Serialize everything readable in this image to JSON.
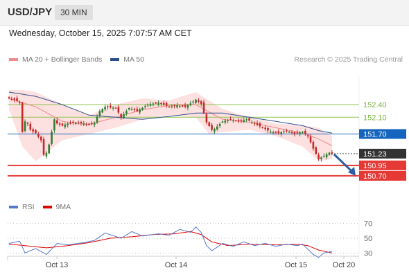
{
  "header": {
    "symbol": "USD/JPY",
    "timeframe": "30 MIN",
    "datetime": "Wednesday, October 15, 2025 7:07:57 AM CET"
  },
  "legend": {
    "main": [
      {
        "label": "MA 20 + Bollinger Bands",
        "color": "#f08a8a"
      },
      {
        "label": "MA 50",
        "color": "#2b4f8e"
      }
    ],
    "rsi": [
      {
        "label": "RSI",
        "color": "#5577cc"
      },
      {
        "label": "9MA",
        "color": "#dd0000"
      }
    ],
    "source": "Research © 2025 Trading Central"
  },
  "colors": {
    "up": "#2e7d32",
    "down": "#c62828",
    "bb_fill": "#fde0e0",
    "ma20": "#f08a8a",
    "ma50": "#2b4f8e",
    "resistance": "#8bc34a",
    "pivot": "#1565c0",
    "support": "#e53935",
    "current": "#333333",
    "arrow": "#2b5ea7"
  },
  "chart_data": [
    {
      "type": "candlestick",
      "pair": "USD/JPY",
      "timeframe": "30 MIN",
      "ylim": [
        150.55,
        152.75
      ],
      "x_ticks": [
        "Oct 13",
        "Oct 14",
        "Oct 15",
        "Oct 20"
      ],
      "levels": [
        {
          "label": "152.40",
          "value": 152.4,
          "kind": "resistance"
        },
        {
          "label": "152.10",
          "value": 152.1,
          "kind": "resistance"
        },
        {
          "label": "151.70",
          "value": 151.7,
          "kind": "pivot"
        },
        {
          "label": "151.23",
          "value": 151.23,
          "kind": "current"
        },
        {
          "label": "150.95",
          "value": 150.95,
          "kind": "support"
        },
        {
          "label": "150.70",
          "value": 150.7,
          "kind": "support"
        }
      ],
      "close_anchors": [
        [
          0,
          152.55
        ],
        [
          2,
          152.52
        ],
        [
          4,
          152.45
        ],
        [
          5,
          151.75
        ],
        [
          6,
          152.0
        ],
        [
          7,
          151.95
        ],
        [
          8,
          151.8
        ],
        [
          10,
          151.72
        ],
        [
          12,
          151.55
        ],
        [
          13,
          151.2
        ],
        [
          14,
          151.25
        ],
        [
          15,
          151.45
        ],
        [
          17,
          152.05
        ],
        [
          18,
          151.95
        ],
        [
          20,
          151.9
        ],
        [
          22,
          151.95
        ],
        [
          25,
          151.97
        ],
        [
          28,
          151.95
        ],
        [
          30,
          151.92
        ],
        [
          32,
          151.97
        ],
        [
          34,
          152.25
        ],
        [
          36,
          152.35
        ],
        [
          40,
          152.32
        ],
        [
          42,
          152.1
        ],
        [
          45,
          152.32
        ],
        [
          48,
          152.25
        ],
        [
          52,
          152.4
        ],
        [
          56,
          152.45
        ],
        [
          60,
          152.35
        ],
        [
          63,
          152.38
        ],
        [
          66,
          152.35
        ],
        [
          68,
          152.43
        ],
        [
          70,
          152.52
        ],
        [
          72,
          152.42
        ],
        [
          73,
          152.2
        ],
        [
          74,
          151.98
        ],
        [
          76,
          151.8
        ],
        [
          77,
          151.82
        ],
        [
          80,
          152.0
        ],
        [
          83,
          152.05
        ],
        [
          86,
          152.0
        ],
        [
          89,
          152.05
        ],
        [
          92,
          151.95
        ],
        [
          95,
          151.85
        ],
        [
          98,
          151.75
        ],
        [
          101,
          151.72
        ],
        [
          104,
          151.78
        ],
        [
          107,
          151.7
        ],
        [
          110,
          151.75
        ],
        [
          112,
          151.65
        ],
        [
          114,
          151.35
        ],
        [
          116,
          151.1
        ],
        [
          118,
          151.18
        ],
        [
          120,
          151.25
        ],
        [
          121,
          151.23
        ]
      ],
      "ma20_anchors": [
        [
          0,
          152.55
        ],
        [
          10,
          152.35
        ],
        [
          20,
          152.0
        ],
        [
          30,
          151.93
        ],
        [
          40,
          152.1
        ],
        [
          50,
          152.28
        ],
        [
          60,
          152.38
        ],
        [
          70,
          152.4
        ],
        [
          80,
          152.05
        ],
        [
          90,
          151.98
        ],
        [
          100,
          151.85
        ],
        [
          110,
          151.72
        ],
        [
          116,
          151.58
        ],
        [
          121,
          151.42
        ]
      ],
      "ma50_anchors": [
        [
          0,
          152.7
        ],
        [
          10,
          152.6
        ],
        [
          20,
          152.4
        ],
        [
          30,
          152.15
        ],
        [
          40,
          152.1
        ],
        [
          50,
          152.05
        ],
        [
          60,
          152.12
        ],
        [
          70,
          152.2
        ],
        [
          80,
          152.2
        ],
        [
          90,
          152.1
        ],
        [
          100,
          152.0
        ],
        [
          110,
          151.9
        ],
        [
          116,
          151.78
        ],
        [
          121,
          151.72
        ]
      ],
      "bb_upper_anchors": [
        [
          0,
          152.75
        ],
        [
          5,
          152.75
        ],
        [
          10,
          152.7
        ],
        [
          20,
          152.4
        ],
        [
          30,
          152.15
        ],
        [
          40,
          152.4
        ],
        [
          50,
          152.55
        ],
        [
          60,
          152.5
        ],
        [
          70,
          152.7
        ],
        [
          80,
          152.3
        ],
        [
          90,
          152.1
        ],
        [
          100,
          151.95
        ],
        [
          110,
          151.9
        ],
        [
          116,
          151.85
        ],
        [
          121,
          151.65
        ]
      ],
      "bb_lower_anchors": [
        [
          0,
          152.3
        ],
        [
          5,
          151.4
        ],
        [
          10,
          151.05
        ],
        [
          20,
          151.55
        ],
        [
          30,
          151.7
        ],
        [
          40,
          151.85
        ],
        [
          50,
          152.05
        ],
        [
          60,
          152.15
        ],
        [
          70,
          152.1
        ],
        [
          75,
          151.7
        ],
        [
          80,
          151.75
        ],
        [
          90,
          151.8
        ],
        [
          100,
          151.65
        ],
        [
          110,
          151.4
        ],
        [
          116,
          151.05
        ],
        [
          121,
          151.1
        ]
      ],
      "forecast": {
        "from": 151.23,
        "to": 150.7
      }
    },
    {
      "type": "line",
      "title": "RSI",
      "ylim": [
        20,
        80
      ],
      "y_ticks": [
        70,
        50,
        30
      ],
      "rsi_anchors": [
        [
          0,
          43
        ],
        [
          4,
          46
        ],
        [
          6,
          30
        ],
        [
          10,
          36
        ],
        [
          14,
          28
        ],
        [
          18,
          43
        ],
        [
          22,
          41
        ],
        [
          28,
          44
        ],
        [
          32,
          47
        ],
        [
          36,
          57
        ],
        [
          42,
          50
        ],
        [
          46,
          59
        ],
        [
          50,
          53
        ],
        [
          56,
          56
        ],
        [
          60,
          54
        ],
        [
          64,
          62
        ],
        [
          68,
          58
        ],
        [
          70,
          65
        ],
        [
          72,
          58
        ],
        [
          74,
          40
        ],
        [
          76,
          33
        ],
        [
          80,
          43
        ],
        [
          84,
          39
        ],
        [
          88,
          45
        ],
        [
          92,
          40
        ],
        [
          96,
          43
        ],
        [
          100,
          39
        ],
        [
          104,
          42
        ],
        [
          108,
          40
        ],
        [
          110,
          42
        ],
        [
          112,
          35
        ],
        [
          114,
          28
        ],
        [
          116,
          24
        ],
        [
          118,
          30
        ],
        [
          121,
          32
        ]
      ],
      "rsi_ma_anchors": [
        [
          0,
          42
        ],
        [
          6,
          40
        ],
        [
          14,
          37
        ],
        [
          22,
          40
        ],
        [
          30,
          44
        ],
        [
          38,
          50
        ],
        [
          46,
          52
        ],
        [
          54,
          55
        ],
        [
          62,
          56
        ],
        [
          68,
          59
        ],
        [
          72,
          55
        ],
        [
          76,
          45
        ],
        [
          82,
          40
        ],
        [
          90,
          42
        ],
        [
          100,
          41
        ],
        [
          108,
          42
        ],
        [
          112,
          40
        ],
        [
          116,
          34
        ],
        [
          121,
          30
        ]
      ]
    }
  ]
}
